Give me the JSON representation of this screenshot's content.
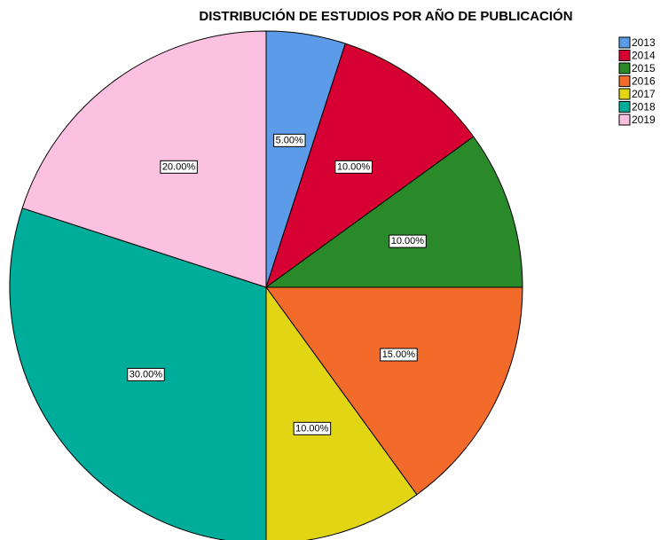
{
  "chart_data": {
    "type": "pie",
    "title": "DISTRIBUCIÓN DE ESTUDIOS POR AÑO DE PUBLICACIÓN",
    "categories": [
      "2013",
      "2014",
      "2015",
      "2016",
      "2017",
      "2018",
      "2019"
    ],
    "values": [
      5,
      10,
      10,
      15,
      10,
      30,
      20
    ],
    "value_labels": [
      "5.00%",
      "10.00%",
      "10.00%",
      "15.00%",
      "10.00%",
      "30.00%",
      "20.00%"
    ],
    "colors": [
      "#5b9be8",
      "#d70032",
      "#2a8a2a",
      "#f26b2a",
      "#e2d614",
      "#00ad9a",
      "#fcc0e0"
    ],
    "legend": "top-right"
  }
}
